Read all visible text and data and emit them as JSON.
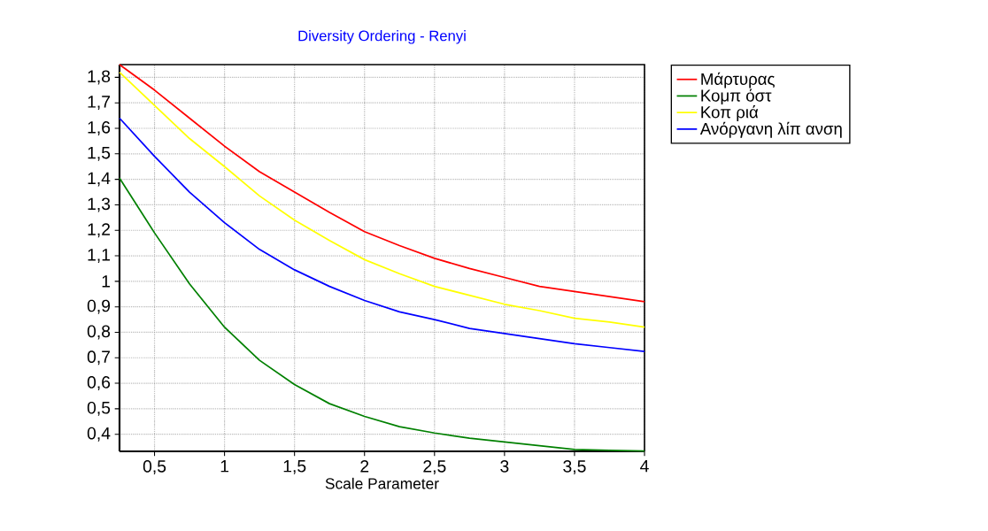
{
  "chart_data": {
    "type": "line",
    "title": "Diversity Ordering - Renyi",
    "xlabel": "Scale Parameter",
    "x": [
      0.25,
      0.5,
      0.75,
      1,
      1.25,
      1.5,
      1.75,
      2,
      2.25,
      2.5,
      2.75,
      3,
      3.25,
      3.5,
      3.75,
      4
    ],
    "series": [
      {
        "name": "Μάρτυρας",
        "color": "#ff0000",
        "values": [
          1.85,
          1.75,
          1.64,
          1.53,
          1.43,
          1.35,
          1.27,
          1.195,
          1.14,
          1.09,
          1.05,
          1.015,
          0.98,
          0.96,
          0.94,
          0.92
        ]
      },
      {
        "name": "Κομπ όστ",
        "color": "#008000",
        "values": [
          1.405,
          1.19,
          0.99,
          0.82,
          0.69,
          0.595,
          0.52,
          0.47,
          0.43,
          0.405,
          0.385,
          0.37,
          0.355,
          0.34,
          0.337,
          0.334
        ]
      },
      {
        "name": "Κοπ ριά",
        "color": "#ffff00",
        "values": [
          1.82,
          1.69,
          1.56,
          1.45,
          1.335,
          1.24,
          1.16,
          1.085,
          1.03,
          0.98,
          0.945,
          0.91,
          0.885,
          0.855,
          0.84,
          0.82
        ]
      },
      {
        "name": "Ανόργανη λίπ ανση",
        "color": "#0000ff",
        "values": [
          1.64,
          1.49,
          1.35,
          1.23,
          1.125,
          1.045,
          0.98,
          0.925,
          0.88,
          0.85,
          0.815,
          0.795,
          0.775,
          0.755,
          0.74,
          0.725
        ]
      }
    ],
    "xlim": [
      0.25,
      4
    ],
    "ylim": [
      0.333,
      1.85
    ],
    "xticks": [
      {
        "value": 0.5,
        "label": "0,5"
      },
      1,
      {
        "value": 1.5,
        "label": "1,5"
      },
      2,
      {
        "value": 2.5,
        "label": "2,5"
      },
      3,
      {
        "value": 3.5,
        "label": "3,5"
      },
      4
    ],
    "yticks": [
      {
        "value": 0.4,
        "label": "0,4"
      },
      {
        "value": 0.5,
        "label": "0,5"
      },
      {
        "value": 0.6,
        "label": "0,6"
      },
      {
        "value": 0.7,
        "label": "0,7"
      },
      {
        "value": 0.8,
        "label": "0,8"
      },
      {
        "value": 0.9,
        "label": "0,9"
      },
      1,
      {
        "value": 1.1,
        "label": "1,1"
      },
      {
        "value": 1.2,
        "label": "1,2"
      },
      {
        "value": 1.3,
        "label": "1,3"
      },
      {
        "value": 1.4,
        "label": "1,4"
      },
      {
        "value": 1.5,
        "label": "1,5"
      },
      {
        "value": 1.6,
        "label": "1,6"
      },
      {
        "value": 1.7,
        "label": "1,7"
      },
      {
        "value": 1.8,
        "label": "1,8"
      }
    ],
    "grid": true,
    "legend": "top right",
    "marker": "none",
    "line_style": "solid"
  }
}
